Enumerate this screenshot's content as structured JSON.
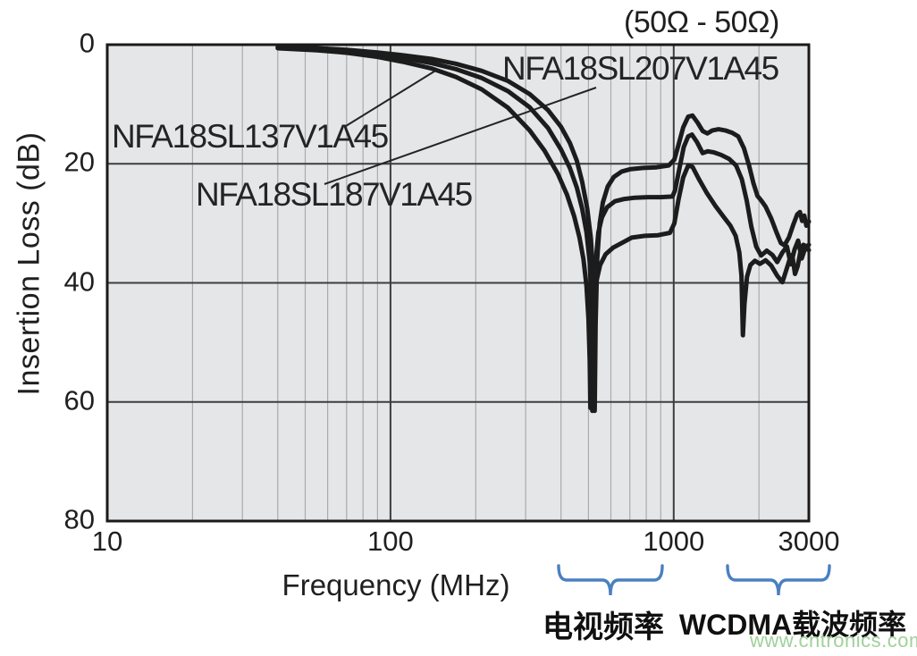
{
  "title": "(50Ω - 50Ω)",
  "x_axis": {
    "label": "Frequency (MHz)",
    "tick_labels": [
      "10",
      "100",
      "1000",
      "3000"
    ],
    "tick_values": [
      10,
      100,
      1000,
      3000
    ]
  },
  "y_axis": {
    "label": "Insertion Loss (dB)",
    "tick_labels": [
      "0",
      "20",
      "40",
      "60",
      "80"
    ],
    "tick_values": [
      0,
      20,
      40,
      60,
      80
    ]
  },
  "band_annotations": {
    "tv": "电视频率",
    "wcdma": "WCDMA载波频率"
  },
  "watermark": "www.cntronics.com",
  "colors": {
    "curve": "#1c1c1c",
    "plot_bg": "#e5e6e8",
    "grid_minor": "#ababab",
    "grid_major": "#3d3d3d",
    "border": "#1a1a1a",
    "brace": "#4a80c0",
    "watermark": "#9fd19b",
    "text": "#1f1f1f"
  },
  "chart_data": {
    "type": "line",
    "title": "(50Ω - 50Ω)",
    "xlabel": "Frequency (MHz)",
    "ylabel": "Insertion Loss (dB)",
    "x_scale": "log",
    "xlim": [
      10,
      3000
    ],
    "ylim": [
      0,
      80
    ],
    "y_axis_inverted_display": true,
    "grid": "on",
    "minor_grid_x_mhz": [
      20,
      30,
      40,
      50,
      60,
      70,
      80,
      90,
      200,
      300,
      400,
      500,
      600,
      700,
      800,
      900,
      2000
    ],
    "major_grid_x_mhz": [
      100,
      1000
    ],
    "major_grid_y_db": [
      20,
      40,
      60
    ],
    "series": [
      {
        "name": "NFA18SL207V1A45",
        "points_mhz_db": [
          [
            40,
            0.4
          ],
          [
            55,
            0.6
          ],
          [
            70,
            0.85
          ],
          [
            90,
            1.3
          ],
          [
            110,
            1.75
          ],
          [
            140,
            2.4
          ],
          [
            170,
            3.2
          ],
          [
            210,
            4.4
          ],
          [
            260,
            6.1
          ],
          [
            310,
            8.3
          ],
          [
            360,
            11
          ],
          [
            400,
            13.8
          ],
          [
            430,
            16.5
          ],
          [
            455,
            19.5
          ],
          [
            475,
            23
          ],
          [
            495,
            27.5
          ],
          [
            510,
            32.5
          ],
          [
            518,
            38
          ],
          [
            523,
            47
          ],
          [
            526,
            61.5
          ],
          [
            530,
            47
          ],
          [
            537,
            36
          ],
          [
            548,
            30
          ],
          [
            562,
            26.5
          ],
          [
            585,
            23.8
          ],
          [
            615,
            22.2
          ],
          [
            655,
            21.3
          ],
          [
            705,
            20.9
          ],
          [
            780,
            20.7
          ],
          [
            870,
            20.6
          ],
          [
            960,
            20.3
          ],
          [
            1005,
            19.3
          ],
          [
            1040,
            16.8
          ],
          [
            1080,
            13.9
          ],
          [
            1125,
            12.1
          ],
          [
            1165,
            11.9
          ],
          [
            1215,
            13.1
          ],
          [
            1265,
            14.5
          ],
          [
            1315,
            14.9
          ],
          [
            1370,
            14.4
          ],
          [
            1440,
            14.2
          ],
          [
            1520,
            14.4
          ],
          [
            1610,
            14.8
          ],
          [
            1690,
            15.4
          ],
          [
            1770,
            17.4
          ],
          [
            1845,
            20.3
          ],
          [
            1910,
            23.2
          ],
          [
            1975,
            25.4
          ],
          [
            2040,
            26.2
          ],
          [
            2110,
            27.2
          ],
          [
            2210,
            29.2
          ],
          [
            2310,
            31.6
          ],
          [
            2390,
            33.3
          ],
          [
            2460,
            33.7
          ],
          [
            2550,
            32.4
          ],
          [
            2650,
            30.1
          ],
          [
            2730,
            28.5
          ],
          [
            2790,
            28.1
          ],
          [
            2840,
            29.6
          ],
          [
            2890,
            28.7
          ],
          [
            2940,
            30.4
          ],
          [
            3000,
            29.7
          ]
        ]
      },
      {
        "name": "NFA18SL137V1A45",
        "points_mhz_db": [
          [
            40,
            0.5
          ],
          [
            55,
            0.75
          ],
          [
            70,
            1.05
          ],
          [
            90,
            1.6
          ],
          [
            110,
            2.2
          ],
          [
            140,
            3.1
          ],
          [
            170,
            4.1
          ],
          [
            210,
            5.6
          ],
          [
            260,
            7.8
          ],
          [
            310,
            10.5
          ],
          [
            360,
            14
          ],
          [
            400,
            17.6
          ],
          [
            430,
            20.7
          ],
          [
            455,
            24
          ],
          [
            475,
            27.5
          ],
          [
            492,
            31.5
          ],
          [
            505,
            36.5
          ],
          [
            512,
            43
          ],
          [
            516,
            61.5
          ],
          [
            521,
            46
          ],
          [
            530,
            36.5
          ],
          [
            542,
            31.5
          ],
          [
            558,
            29
          ],
          [
            582,
            27.3
          ],
          [
            620,
            26.3
          ],
          [
            670,
            25.9
          ],
          [
            730,
            25.7
          ],
          [
            810,
            25.6
          ],
          [
            900,
            25.6
          ],
          [
            990,
            25.5
          ],
          [
            1010,
            24.5
          ],
          [
            1045,
            21
          ],
          [
            1085,
            17.2
          ],
          [
            1125,
            15.4
          ],
          [
            1160,
            15.1
          ],
          [
            1210,
            16.4
          ],
          [
            1265,
            18.2
          ],
          [
            1320,
            17.9
          ],
          [
            1390,
            18.1
          ],
          [
            1470,
            18.5
          ],
          [
            1570,
            19.2
          ],
          [
            1660,
            20.3
          ],
          [
            1740,
            22.6
          ],
          [
            1810,
            26.2
          ],
          [
            1880,
            30.6
          ],
          [
            1955,
            33.9
          ],
          [
            2035,
            35.4
          ],
          [
            2130,
            34.6
          ],
          [
            2230,
            35.3
          ],
          [
            2320,
            36.5
          ],
          [
            2420,
            34.9
          ],
          [
            2510,
            33.9
          ],
          [
            2590,
            36.9
          ],
          [
            2670,
            34.4
          ],
          [
            2750,
            32.9
          ],
          [
            2830,
            35.9
          ],
          [
            2915,
            34.1
          ],
          [
            3000,
            34.5
          ]
        ]
      },
      {
        "name": "NFA18SL187V1A45",
        "points_mhz_db": [
          [
            40,
            0.6
          ],
          [
            55,
            0.95
          ],
          [
            70,
            1.35
          ],
          [
            90,
            2.05
          ],
          [
            110,
            2.85
          ],
          [
            140,
            4.0
          ],
          [
            170,
            5.4
          ],
          [
            210,
            7.5
          ],
          [
            260,
            10.6
          ],
          [
            310,
            14.4
          ],
          [
            350,
            17.8
          ],
          [
            390,
            21.7
          ],
          [
            420,
            25.2
          ],
          [
            445,
            28.8
          ],
          [
            465,
            32.4
          ],
          [
            480,
            36
          ],
          [
            492,
            40.5
          ],
          [
            500,
            46
          ],
          [
            505,
            53
          ],
          [
            508,
            61
          ],
          [
            512,
            53
          ],
          [
            520,
            45
          ],
          [
            532,
            40
          ],
          [
            550,
            37
          ],
          [
            575,
            35.2
          ],
          [
            610,
            34.1
          ],
          [
            655,
            33.3
          ],
          [
            710,
            32.4
          ],
          [
            790,
            32.1
          ],
          [
            880,
            32.0
          ],
          [
            970,
            31.6
          ],
          [
            1005,
            30
          ],
          [
            1040,
            26
          ],
          [
            1080,
            22.3
          ],
          [
            1125,
            20.3
          ],
          [
            1165,
            20.5
          ],
          [
            1225,
            22.5
          ],
          [
            1305,
            24.8
          ],
          [
            1405,
            27.1
          ],
          [
            1505,
            29
          ],
          [
            1585,
            30.4
          ],
          [
            1655,
            32.1
          ],
          [
            1705,
            34.9
          ],
          [
            1735,
            38.8
          ],
          [
            1755,
            48.8
          ],
          [
            1778,
            43.5
          ],
          [
            1815,
            39
          ],
          [
            1865,
            37
          ],
          [
            1935,
            36.3
          ],
          [
            2015,
            36.8
          ],
          [
            2110,
            36.2
          ],
          [
            2210,
            37.1
          ],
          [
            2320,
            38.8
          ],
          [
            2420,
            39.9
          ],
          [
            2490,
            38
          ],
          [
            2560,
            36.2
          ],
          [
            2620,
            35.3
          ],
          [
            2680,
            38.5
          ],
          [
            2740,
            37.2
          ],
          [
            2800,
            34.8
          ],
          [
            2870,
            33.6
          ],
          [
            2940,
            33.9
          ],
          [
            3000,
            33.6
          ]
        ]
      }
    ],
    "annotations": [
      {
        "text": "电视频率",
        "approx_band_mhz": [
          470,
          900
        ]
      },
      {
        "text": "WCDMA载波频率",
        "approx_band_mhz": [
          1700,
          3600
        ]
      }
    ],
    "legend_position": "labels-on-plot"
  }
}
